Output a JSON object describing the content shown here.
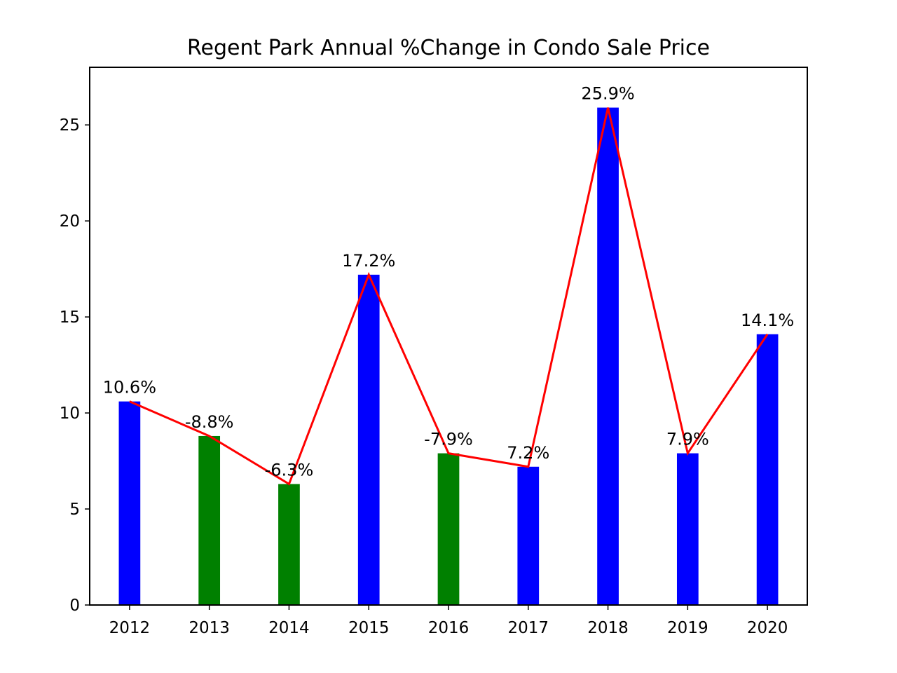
{
  "chart_data": {
    "type": "bar",
    "title": "Regent Park Annual %Change in Condo Sale Price",
    "xlabel": "",
    "ylabel": "",
    "categories": [
      "2012",
      "2013",
      "2014",
      "2015",
      "2016",
      "2017",
      "2018",
      "2019",
      "2020"
    ],
    "values": [
      10.6,
      8.8,
      6.3,
      17.2,
      7.9,
      7.2,
      25.9,
      7.9,
      14.1
    ],
    "value_labels": [
      "10.6%",
      "-8.8%",
      "-6.3%",
      "17.2%",
      "-7.9%",
      "7.2%",
      "25.9%",
      "7.9%",
      "14.1%"
    ],
    "bar_colors": [
      "#0000ff",
      "#008000",
      "#008000",
      "#0000ff",
      "#008000",
      "#0000ff",
      "#0000ff",
      "#0000ff",
      "#0000ff"
    ],
    "line": {
      "values": [
        10.6,
        8.8,
        6.3,
        17.2,
        7.9,
        7.2,
        25.9,
        7.9,
        14.1
      ],
      "color": "#ff0000"
    },
    "ylim": [
      0,
      28
    ],
    "yticks": [
      0,
      5,
      10,
      15,
      20,
      25
    ],
    "grid": false,
    "legend": "none"
  }
}
